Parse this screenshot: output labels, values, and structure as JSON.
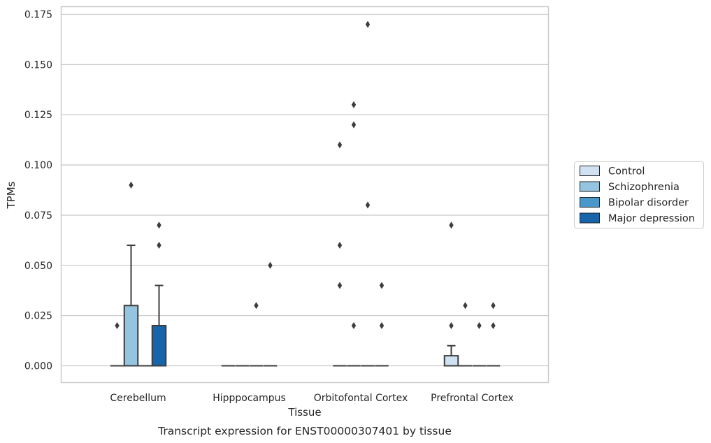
{
  "caption": "Transcript expression for ENST00000307401 by tissue",
  "chart_data": {
    "type": "box",
    "title": "",
    "xlabel": "Tissue",
    "ylabel": "TPMs",
    "ylim": [
      -0.008,
      0.179
    ],
    "yticks": [
      0.0,
      0.025,
      0.05,
      0.075,
      0.1,
      0.125,
      0.15,
      0.175
    ],
    "ytick_labels": [
      "0.000",
      "0.025",
      "0.050",
      "0.075",
      "0.100",
      "0.125",
      "0.150",
      "0.175"
    ],
    "grid": "horizontal",
    "legend_position": "right",
    "categories": [
      "Cerebellum",
      "Hipppocampus",
      "Orbitofontal Cortex",
      "Prefrontal Cortex"
    ],
    "series": [
      {
        "name": "Control",
        "color": "#d0e1f2",
        "boxes": [
          {
            "q1": 0.0,
            "median": 0.0,
            "q3": 0.0,
            "whisker_low": 0.0,
            "whisker_high": 0.0,
            "outliers": [
              0.02
            ]
          },
          {
            "q1": 0.0,
            "median": 0.0,
            "q3": 0.0,
            "whisker_low": 0.0,
            "whisker_high": 0.0,
            "outliers": []
          },
          {
            "q1": 0.0,
            "median": 0.0,
            "q3": 0.0,
            "whisker_low": 0.0,
            "whisker_high": 0.0,
            "outliers": [
              0.04,
              0.06,
              0.11
            ]
          },
          {
            "q1": 0.0,
            "median": 0.0,
            "q3": 0.005,
            "whisker_low": 0.0,
            "whisker_high": 0.01,
            "outliers": [
              0.02,
              0.07
            ]
          }
        ]
      },
      {
        "name": "Schizophrenia",
        "color": "#94c4df",
        "boxes": [
          {
            "q1": 0.0,
            "median": 0.0,
            "q3": 0.03,
            "whisker_low": 0.0,
            "whisker_high": 0.06,
            "outliers": [
              0.09
            ]
          },
          {
            "q1": 0.0,
            "median": 0.0,
            "q3": 0.0,
            "whisker_low": 0.0,
            "whisker_high": 0.0,
            "outliers": []
          },
          {
            "q1": 0.0,
            "median": 0.0,
            "q3": 0.0,
            "whisker_low": 0.0,
            "whisker_high": 0.0,
            "outliers": [
              0.02,
              0.12,
              0.13
            ]
          },
          {
            "q1": 0.0,
            "median": 0.0,
            "q3": 0.0,
            "whisker_low": 0.0,
            "whisker_high": 0.0,
            "outliers": [
              0.03
            ]
          }
        ]
      },
      {
        "name": "Bipolar disorder",
        "color": "#4a98c9",
        "boxes": [
          {
            "q1": 0.0,
            "median": 0.0,
            "q3": 0.0,
            "whisker_low": 0.0,
            "whisker_high": 0.0,
            "outliers": []
          },
          {
            "q1": 0.0,
            "median": 0.0,
            "q3": 0.0,
            "whisker_low": 0.0,
            "whisker_high": 0.0,
            "outliers": [
              0.03
            ]
          },
          {
            "q1": 0.0,
            "median": 0.0,
            "q3": 0.0,
            "whisker_low": 0.0,
            "whisker_high": 0.0,
            "outliers": [
              0.08,
              0.17
            ]
          },
          {
            "q1": 0.0,
            "median": 0.0,
            "q3": 0.0,
            "whisker_low": 0.0,
            "whisker_high": 0.0,
            "outliers": [
              0.02
            ]
          }
        ]
      },
      {
        "name": "Major depression",
        "color": "#1764ab",
        "boxes": [
          {
            "q1": 0.0,
            "median": 0.0,
            "q3": 0.02,
            "whisker_low": 0.0,
            "whisker_high": 0.04,
            "outliers": [
              0.06,
              0.07
            ]
          },
          {
            "q1": 0.0,
            "median": 0.0,
            "q3": 0.0,
            "whisker_low": 0.0,
            "whisker_high": 0.0,
            "outliers": [
              0.05
            ]
          },
          {
            "q1": 0.0,
            "median": 0.0,
            "q3": 0.0,
            "whisker_low": 0.0,
            "whisker_high": 0.0,
            "outliers": [
              0.02,
              0.04
            ]
          },
          {
            "q1": 0.0,
            "median": 0.0,
            "q3": 0.0,
            "whisker_low": 0.0,
            "whisker_high": 0.0,
            "outliers": [
              0.02,
              0.03
            ]
          }
        ]
      }
    ]
  },
  "colors": {
    "grid": "#cccccc",
    "frame": "#cccccc",
    "box_edge": "#3d3d3d",
    "outlier": "#3d3d3d"
  }
}
